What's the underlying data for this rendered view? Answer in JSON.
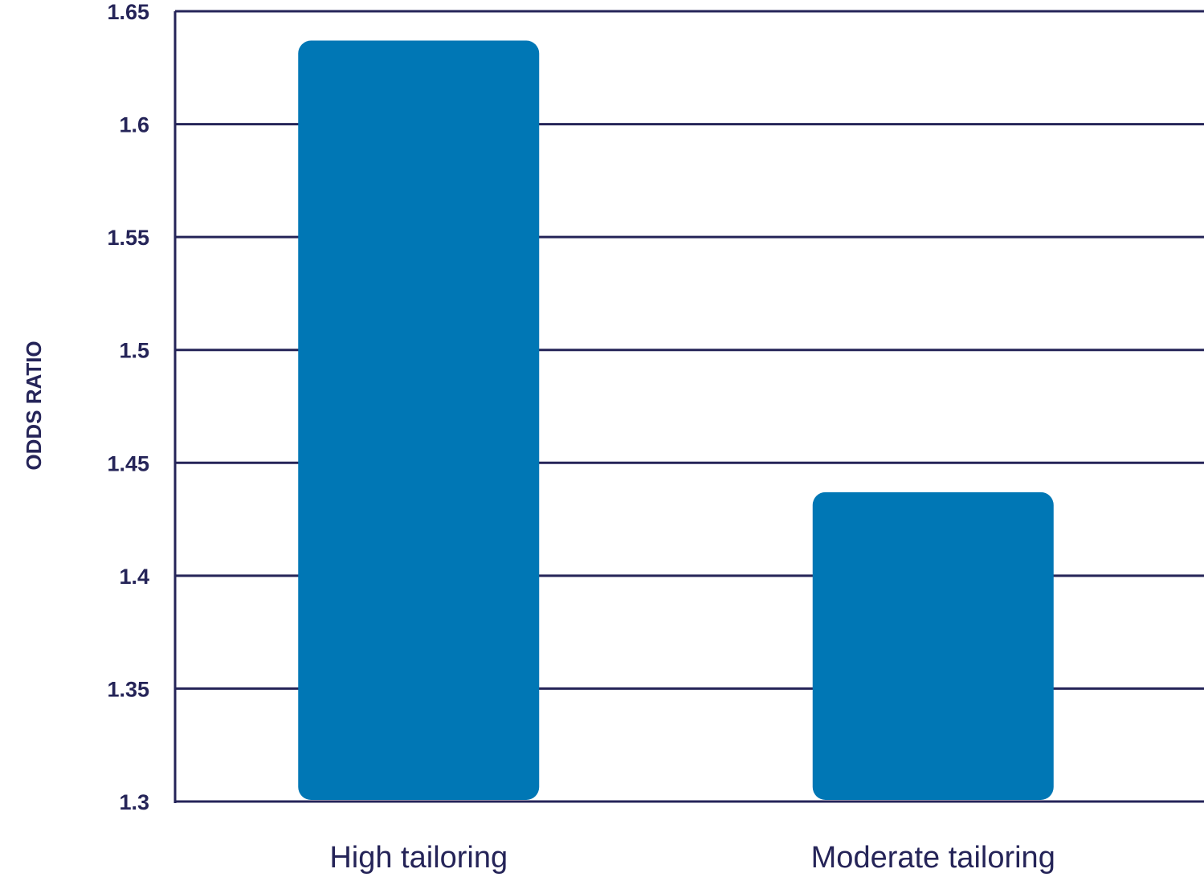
{
  "chart_data": {
    "type": "bar",
    "categories": [
      "High tailoring",
      "Moderate tailoring"
    ],
    "values": [
      1.637,
      1.437
    ],
    "title": "",
    "xlabel": "",
    "ylabel": "ODDS RATIO",
    "ylim": [
      1.3,
      1.65
    ],
    "yticks": [
      "1.3",
      "1.35",
      "1.4",
      "1.45",
      "1.5",
      "1.55",
      "1.6",
      "1.65"
    ],
    "grid": true,
    "legend": "none",
    "colors": {
      "bar": "#0077B5",
      "axis": "#252458",
      "text": "#252458"
    }
  }
}
